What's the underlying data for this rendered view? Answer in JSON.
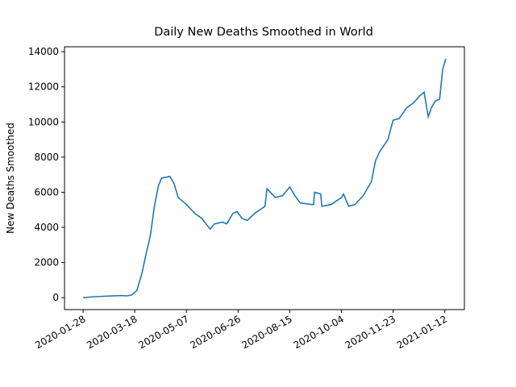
{
  "chart_data": {
    "type": "line",
    "title": "Daily New Deaths Smoothed in World",
    "y_label": "New Deaths Smoothed",
    "x": [
      "2020-01-28",
      "2020-02-10",
      "2020-02-25",
      "2020-03-05",
      "2020-03-10",
      "2020-03-15",
      "2020-03-20",
      "2020-03-25",
      "2020-03-29",
      "2020-04-02",
      "2020-04-06",
      "2020-04-10",
      "2020-04-13",
      "2020-04-21",
      "2020-04-25",
      "2020-04-29",
      "2020-05-07",
      "2020-05-15",
      "2020-05-22",
      "2020-05-30",
      "2020-06-03",
      "2020-06-11",
      "2020-06-15",
      "2020-06-21",
      "2020-06-25",
      "2020-06-30",
      "2020-07-05",
      "2020-07-12",
      "2020-07-17",
      "2020-07-22",
      "2020-07-24",
      "2020-08-01",
      "2020-08-08",
      "2020-08-15",
      "2020-08-20",
      "2020-08-25",
      "2020-09-05",
      "2020-09-07",
      "2020-09-08",
      "2020-09-14",
      "2020-09-15",
      "2020-09-24",
      "2020-10-04",
      "2020-10-06",
      "2020-10-11",
      "2020-10-17",
      "2020-10-25",
      "2020-11-02",
      "2020-11-06",
      "2020-11-10",
      "2020-11-18",
      "2020-11-23",
      "2020-11-29",
      "2020-12-06",
      "2020-12-13",
      "2020-12-19",
      "2020-12-23",
      "2020-12-27",
      "2020-12-30",
      "2021-01-03",
      "2021-01-07",
      "2021-01-10",
      "2021-01-13"
    ],
    "series": [
      {
        "name": "New Deaths Smoothed",
        "color": "#1f77b4",
        "values": [
          0,
          60,
          100,
          120,
          100,
          150,
          400,
          1400,
          2500,
          3500,
          5200,
          6400,
          6800,
          6900,
          6500,
          5700,
          5300,
          4800,
          4500,
          3900,
          4200,
          4300,
          4200,
          4800,
          4900,
          4500,
          4400,
          4800,
          5000,
          5200,
          6200,
          5700,
          5800,
          6300,
          5800,
          5400,
          5300,
          5300,
          6000,
          5900,
          5200,
          5300,
          5700,
          5900,
          5200,
          5300,
          5800,
          6600,
          7800,
          8300,
          9000,
          10100,
          10200,
          10800,
          11100,
          11500,
          11700,
          10300,
          10800,
          11200,
          11300,
          13000,
          13600
        ]
      }
    ],
    "xlim": [
      "2020-01-10",
      "2021-01-31"
    ],
    "xticks": [
      "2020-01-28",
      "2020-03-18",
      "2020-05-07",
      "2020-06-26",
      "2020-08-15",
      "2020-10-04",
      "2020-11-23",
      "2021-01-12"
    ],
    "ylim": [
      -680,
      14280
    ],
    "yticks": [
      0,
      2000,
      4000,
      6000,
      8000,
      10000,
      12000,
      14000
    ]
  }
}
